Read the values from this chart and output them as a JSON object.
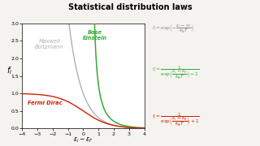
{
  "title": "Statistical distribution laws",
  "xlabel": "$\\varepsilon_i - \\varepsilon_F$",
  "ylabel": "$f_i$",
  "xlim": [
    -4,
    4
  ],
  "ylim": [
    0,
    3
  ],
  "yticks": [
    0,
    0.5,
    1.0,
    1.5,
    2.0,
    2.5,
    3.0
  ],
  "xticks": [
    -4,
    -3,
    -2,
    -1,
    0,
    1,
    2,
    3,
    4
  ],
  "bg_color": "#f5f3f0",
  "plot_bg": "#ffffff",
  "fermi_color": "#cc2200",
  "bose_color": "#33aa33",
  "maxwell_color": "#b0b0b0",
  "fermi_label": "Fermi Dirac",
  "bose_label": "Bose\nEinstein",
  "maxwell_label": "Maxwell\nBoltzmann",
  "kBT": 0.85,
  "be_shift": 0.5,
  "eq_maxwell_color": "#888888",
  "eq_bose_color": "#33aa33",
  "eq_fermi_color": "#cc2200"
}
